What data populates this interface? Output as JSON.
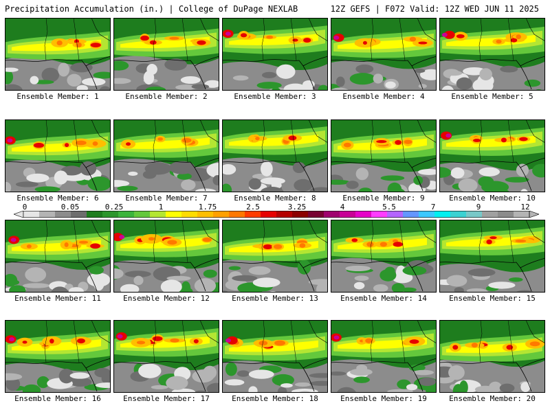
{
  "header": {
    "title": "Precipitation Accumulation (in.) | College of DuPage NEXLAB",
    "valid": "12Z GEFS | F072 Valid: 12Z WED JUN 11 2025"
  },
  "colorbar": {
    "labels": [
      "0",
      "0.05",
      "0.25",
      "1",
      "1.75",
      "2.5",
      "3.25",
      "4",
      "5.5",
      "7",
      "9",
      "12"
    ],
    "colors": [
      "#e6e6e6",
      "#b4b4b4",
      "#8c8c8c",
      "#6e6e6e",
      "#1e7d1e",
      "#2c962c",
      "#3cb43c",
      "#64c83c",
      "#b4e632",
      "#ffff00",
      "#ffdc00",
      "#ffbe00",
      "#ffa000",
      "#ff7800",
      "#ff3c00",
      "#e60000",
      "#b40000",
      "#8c0000",
      "#780032",
      "#a0006e",
      "#c80096",
      "#e600c8",
      "#ff3cff",
      "#b464ff",
      "#6496ff",
      "#3cc8ff",
      "#00f0f0",
      "#3cd2d2",
      "#78c8c8",
      "#a0a0a0",
      "#8c8c8c",
      "#b4b4b4"
    ]
  },
  "panels": [
    {
      "label": "Ensemble Member: 1"
    },
    {
      "label": "Ensemble Member: 2"
    },
    {
      "label": "Ensemble Member: 3"
    },
    {
      "label": "Ensemble Member: 4"
    },
    {
      "label": "Ensemble Member: 5"
    },
    {
      "label": "Ensemble Member: 6"
    },
    {
      "label": "Ensemble Member: 7"
    },
    {
      "label": "Ensemble Member: 8"
    },
    {
      "label": "Ensemble Member: 9"
    },
    {
      "label": "Ensemble Member: 10"
    },
    {
      "label": "Ensemble Member: 11"
    },
    {
      "label": "Ensemble Member: 12"
    },
    {
      "label": "Ensemble Member: 13"
    },
    {
      "label": "Ensemble Member: 14"
    },
    {
      "label": "Ensemble Member: 15"
    },
    {
      "label": "Ensemble Member: 16"
    },
    {
      "label": "Ensemble Member: 17"
    },
    {
      "label": "Ensemble Member: 18"
    },
    {
      "label": "Ensemble Member: 19"
    },
    {
      "label": "Ensemble Member: 20"
    }
  ]
}
